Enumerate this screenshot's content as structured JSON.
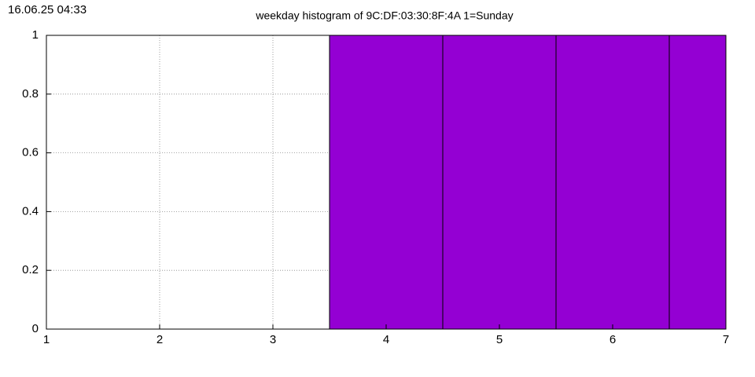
{
  "timestamp": "16.06.25 04:33",
  "chart_data": {
    "type": "bar",
    "title": "weekday histogram of 9C:DF:03:30:8F:4A 1=Sunday",
    "x": [
      1,
      2,
      3,
      4,
      5,
      6,
      7
    ],
    "values": [
      0,
      0,
      0,
      1,
      1,
      1,
      1
    ],
    "color": "#9400d3",
    "xlim": [
      1,
      7
    ],
    "xticks": [
      1,
      2,
      3,
      4,
      5,
      6,
      7
    ],
    "ylim": [
      0,
      1
    ],
    "yticks": [
      0,
      0.2,
      0.4,
      0.6,
      0.8,
      1
    ],
    "grid": true
  }
}
